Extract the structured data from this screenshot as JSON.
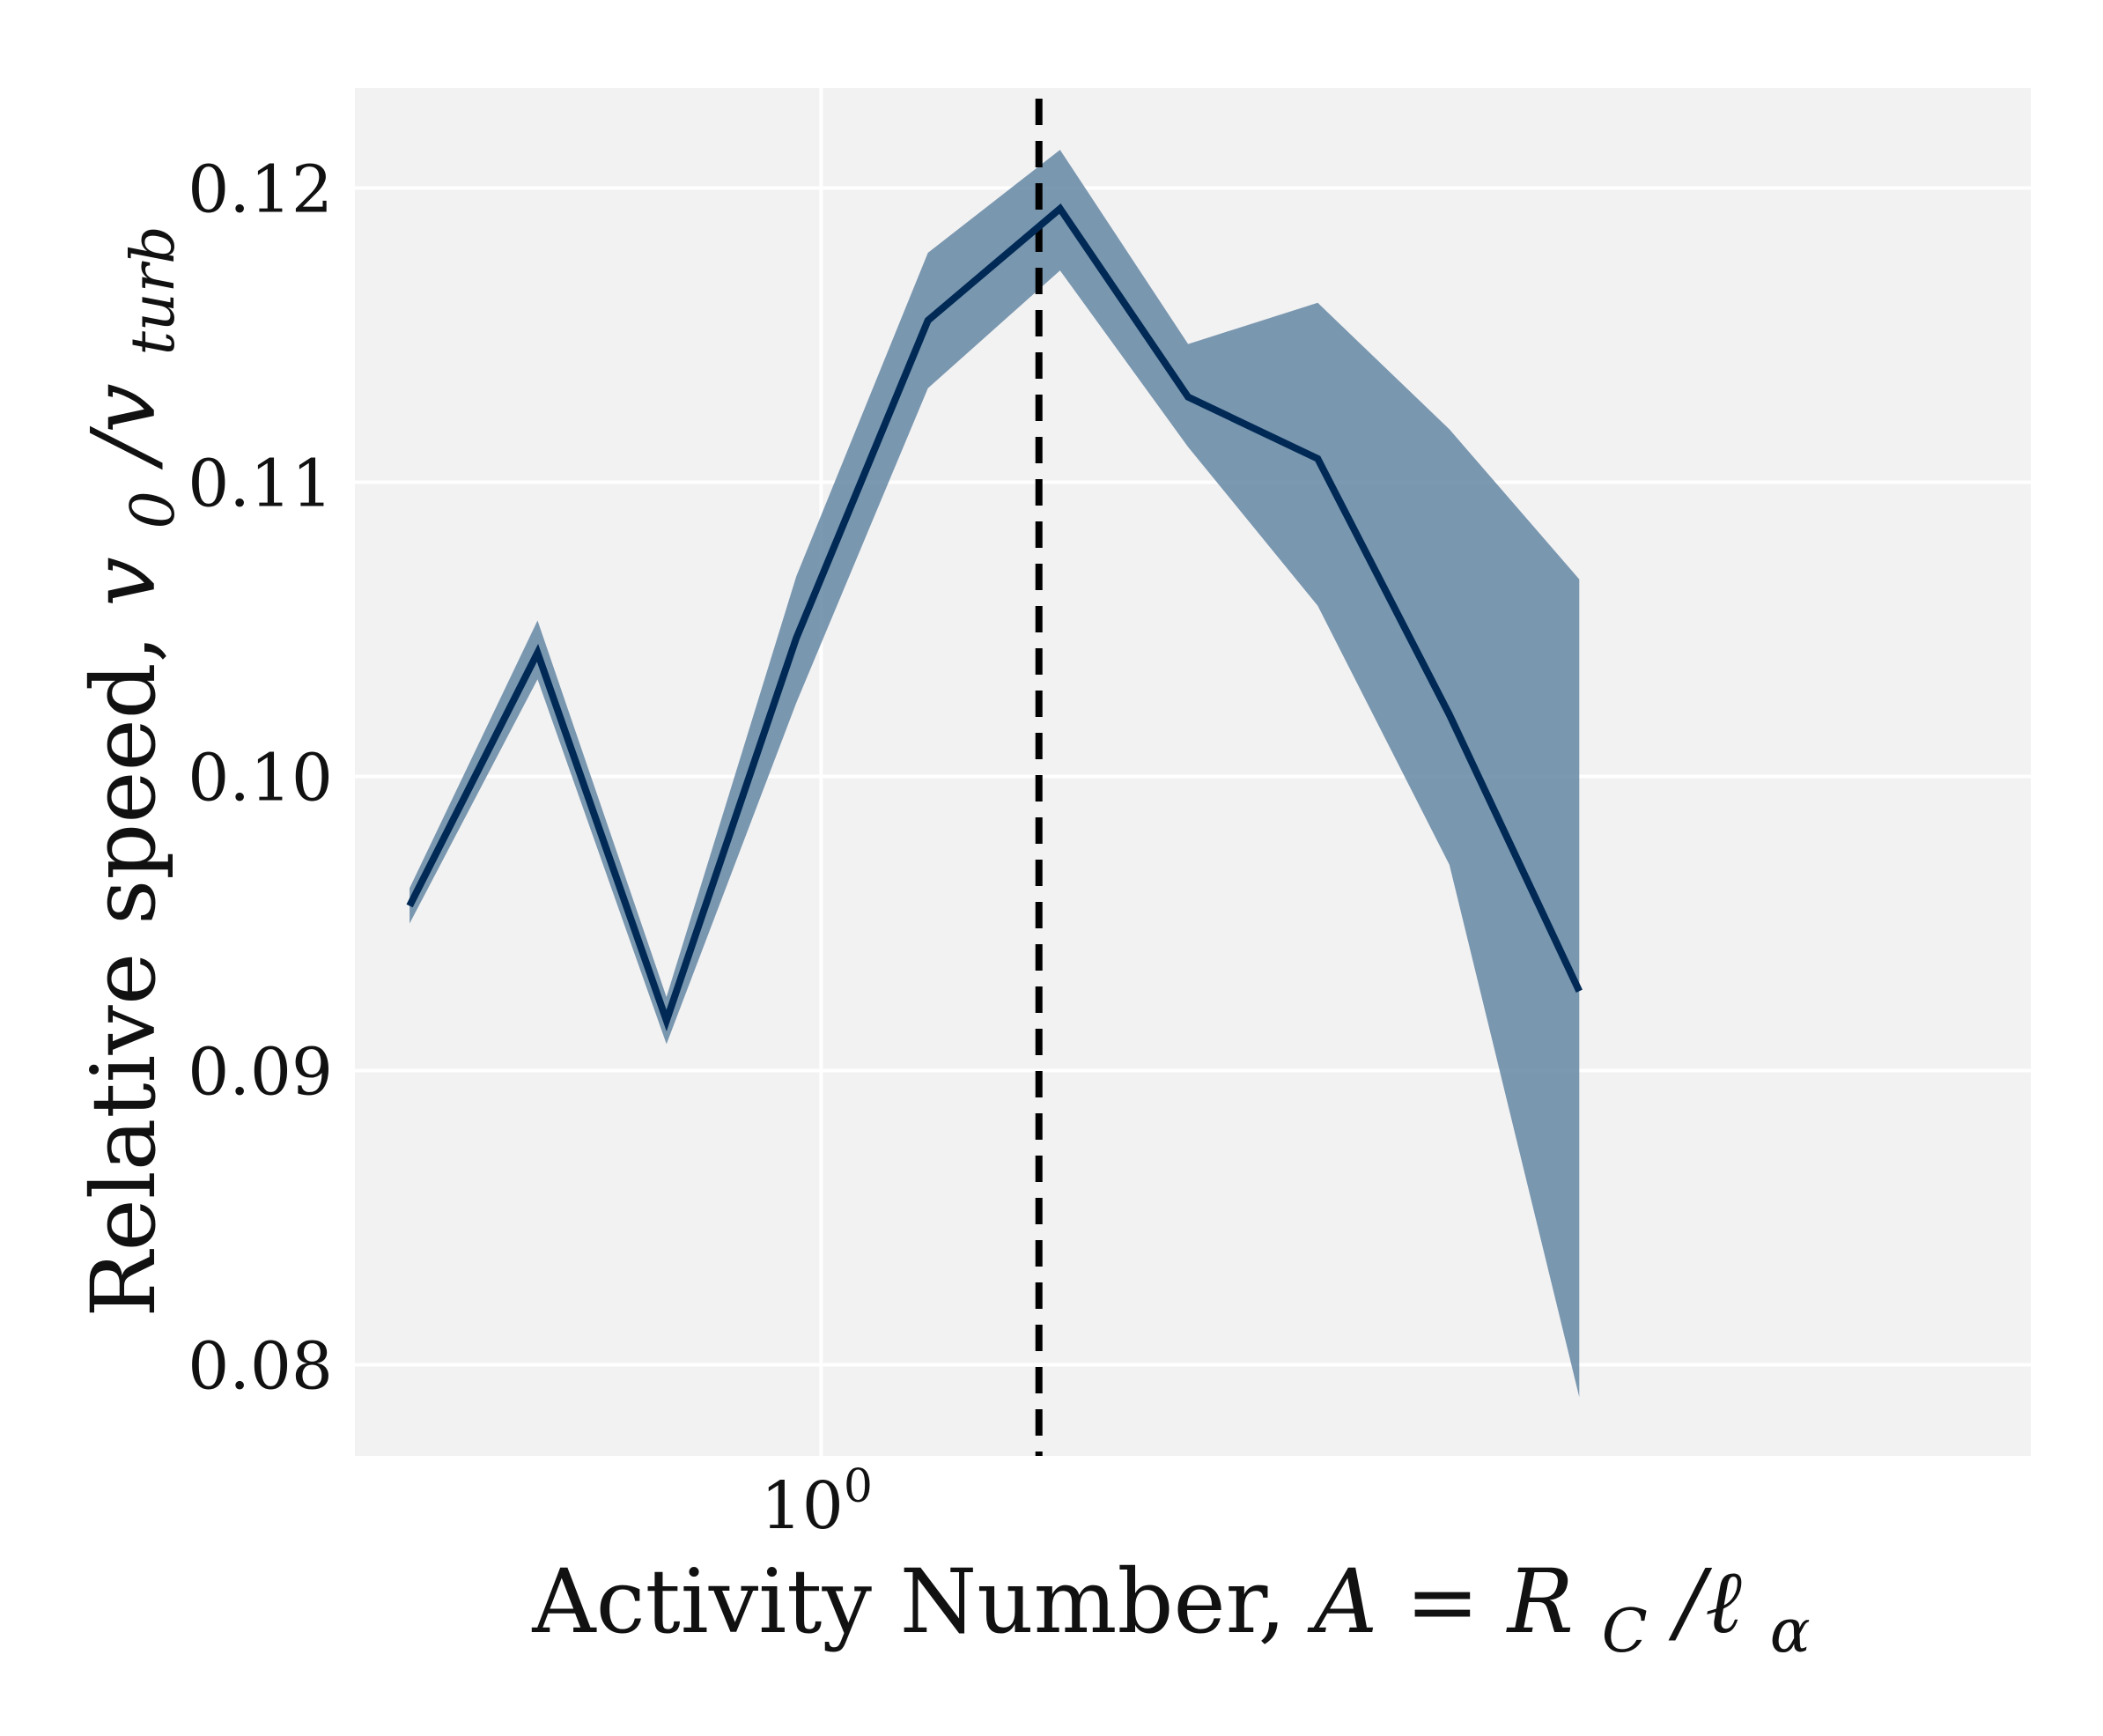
{
  "chart_data": {
    "type": "line",
    "title": "",
    "xlabel": "Activity Number, ",
    "xlabel_math": "A = R",
    "xlabel_math_sub": "C",
    "xlabel_math_tail": "/ℓ",
    "xlabel_math_tail_sub": "α",
    "ylabel": "Relative speed, ",
    "ylabel_math": "v",
    "ylabel_math_sub": "0",
    "ylabel_math_mid": "/v",
    "ylabel_math_sub2": "turb",
    "xscale": "log",
    "xlim": [
      0.42,
      9.5
    ],
    "ylim": [
      0.0769,
      0.1234
    ],
    "grid": true,
    "x_ticks": [
      {
        "value": 1,
        "base": "10",
        "exp": "0"
      }
    ],
    "y_ticks": [
      {
        "value": 0.08,
        "label": "0.08"
      },
      {
        "value": 0.09,
        "label": "0.09"
      },
      {
        "value": 0.1,
        "label": "0.10"
      },
      {
        "value": 0.11,
        "label": "0.11"
      },
      {
        "value": 0.12,
        "label": "0.12"
      }
    ],
    "series": [
      {
        "x": [
          0.465,
          0.59,
          0.75,
          0.955,
          1.22,
          1.56,
          1.98,
          2.52,
          3.22,
          4.1
        ],
        "y": [
          0.0956,
          0.1042,
          0.0917,
          0.1047,
          0.1155,
          0.1193,
          0.1129,
          0.1108,
          0.1021,
          0.0927
        ],
        "lower": [
          0.095,
          0.1033,
          0.0909,
          0.1025,
          0.1132,
          0.1172,
          0.1112,
          0.1058,
          0.097,
          0.0789
        ],
        "upper": [
          0.0962,
          0.1053,
          0.0925,
          0.1068,
          0.1178,
          0.1213,
          0.1147,
          0.1161,
          0.1118,
          0.1067
        ]
      }
    ],
    "vline": {
      "x": 1.5,
      "style": "dashed",
      "color": "#000000"
    },
    "colors": {
      "line": "#002a55",
      "band": "#5b7f9f",
      "background": "#f2f2f2",
      "grid": "#ffffff"
    }
  }
}
